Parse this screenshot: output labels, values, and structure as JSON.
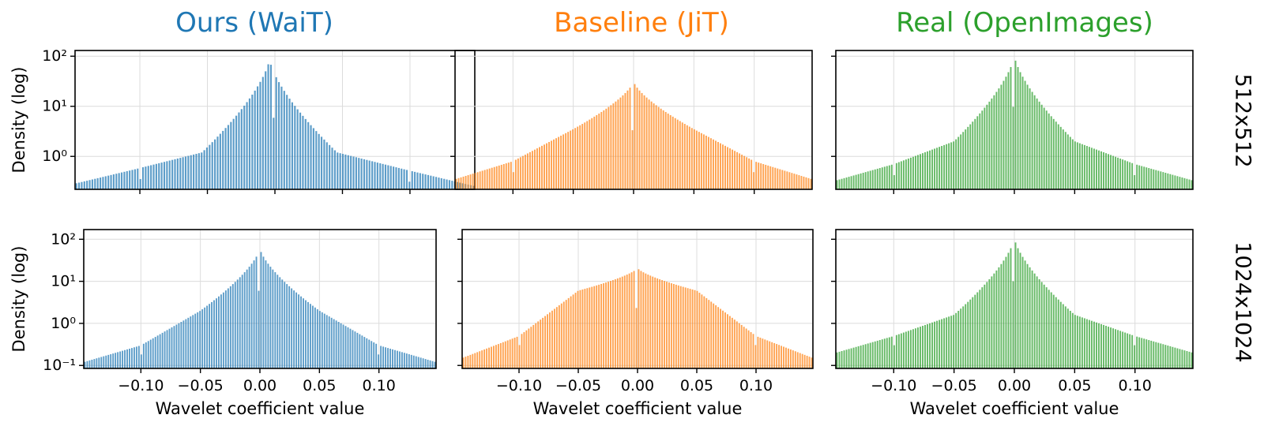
{
  "figure": {
    "columns": [
      {
        "title": "Ours (WaiT)",
        "color": "#1f77b4"
      },
      {
        "title": "Baseline (JiT)",
        "color": "#ff7f0e"
      },
      {
        "title": "Real (OpenImages)",
        "color": "#2ca02c"
      }
    ],
    "rows": [
      {
        "label": "512x512"
      },
      {
        "label": "1024x1024"
      }
    ]
  },
  "chart_data": [
    {
      "type": "bar",
      "row": "512x512",
      "column": "Ours (WaiT)",
      "color": "#1f77b4",
      "xlabel": "",
      "ylabel": "Density (log)",
      "yscale": "log",
      "xlim": [
        -0.148,
        0.148
      ],
      "ylim": [
        0.22,
        130
      ],
      "xticks": [
        -0.1,
        -0.05,
        0.0,
        0.05,
        0.1
      ],
      "xtick_labels": [
        "−0.10",
        "−0.05",
        "0.00",
        "0.05",
        "0.10"
      ],
      "yticks": [
        1,
        10,
        100
      ],
      "ytick_labels": [
        "10⁰",
        "10¹",
        "10²"
      ],
      "grid": true,
      "distribution": {
        "peak_x": -0.004,
        "peak_density": 90,
        "density_at_0.05": 1.2,
        "density_at_0.10": 0.55,
        "density_at_0.148": 0.27
      }
    },
    {
      "type": "bar",
      "row": "512x512",
      "column": "Baseline (JiT)",
      "color": "#ff7f0e",
      "xlabel": "",
      "ylabel": "",
      "yscale": "log",
      "xlim": [
        -0.148,
        0.148
      ],
      "ylim": [
        0.22,
        130
      ],
      "xticks": [
        -0.1,
        -0.05,
        0.0,
        0.05,
        0.1
      ],
      "xtick_labels": [
        "−0.10",
        "−0.05",
        "0.00",
        "0.05",
        "0.10"
      ],
      "yticks": [
        1,
        10,
        100
      ],
      "ytick_labels": [
        "",
        "",
        ""
      ],
      "grid": true,
      "distribution": {
        "peak_x": 0.0,
        "peak_density": 32,
        "density_at_0.05": 3.5,
        "density_at_0.10": 0.8,
        "density_at_0.148": 0.35
      }
    },
    {
      "type": "bar",
      "row": "512x512",
      "column": "Real (OpenImages)",
      "color": "#2ca02c",
      "xlabel": "",
      "ylabel": "",
      "yscale": "log",
      "xlim": [
        -0.148,
        0.148
      ],
      "ylim": [
        0.22,
        130
      ],
      "xticks": [
        -0.1,
        -0.05,
        0.0,
        0.05,
        0.1
      ],
      "xtick_labels": [
        "−0.10",
        "−0.05",
        "0.00",
        "0.05",
        "0.10"
      ],
      "yticks": [
        1,
        10,
        100
      ],
      "ytick_labels": [
        "",
        "",
        ""
      ],
      "grid": true,
      "distribution": {
        "peak_x": 0.0,
        "peak_density": 105,
        "density_at_0.05": 2.0,
        "density_at_0.10": 0.7,
        "density_at_0.148": 0.33
      }
    },
    {
      "type": "bar",
      "row": "1024x1024",
      "column": "Ours (WaiT)",
      "color": "#1f77b4",
      "xlabel": "Wavelet coefficient value",
      "ylabel": "Density (log)",
      "yscale": "log",
      "xlim": [
        -0.148,
        0.148
      ],
      "ylim": [
        0.085,
        170
      ],
      "xticks": [
        -0.1,
        -0.05,
        0.0,
        0.05,
        0.1
      ],
      "xtick_labels": [
        "−0.10",
        "−0.05",
        "0.00",
        "0.05",
        "0.10"
      ],
      "yticks": [
        0.1,
        1,
        10,
        100
      ],
      "ytick_labels": [
        "10⁻¹",
        "10⁰",
        "10¹",
        "10²"
      ],
      "grid": true,
      "distribution": {
        "peak_x": 0.0,
        "peak_density": 62,
        "density_at_0.05": 2.0,
        "density_at_0.10": 0.3,
        "density_at_0.148": 0.12
      }
    },
    {
      "type": "bar",
      "row": "1024x1024",
      "column": "Baseline (JiT)",
      "color": "#ff7f0e",
      "xlabel": "Wavelet coefficient value",
      "ylabel": "",
      "yscale": "log",
      "xlim": [
        -0.148,
        0.148
      ],
      "ylim": [
        0.085,
        170
      ],
      "xticks": [
        -0.1,
        -0.05,
        0.0,
        0.05,
        0.1
      ],
      "xtick_labels": [
        "−0.10",
        "−0.05",
        "0.00",
        "0.05",
        "0.10"
      ],
      "yticks": [
        0.1,
        1,
        10,
        100
      ],
      "ytick_labels": [
        "",
        "",
        "",
        ""
      ],
      "grid": true,
      "distribution": {
        "peak_x": 0.0,
        "peak_density": 21,
        "density_at_0.05": 6.0,
        "density_at_0.10": 0.5,
        "density_at_0.148": 0.15
      }
    },
    {
      "type": "bar",
      "row": "1024x1024",
      "column": "Real (OpenImages)",
      "color": "#2ca02c",
      "xlabel": "Wavelet coefficient value",
      "ylabel": "",
      "yscale": "log",
      "xlim": [
        -0.148,
        0.148
      ],
      "ylim": [
        0.085,
        170
      ],
      "xticks": [
        -0.1,
        -0.05,
        0.0,
        0.05,
        0.1
      ],
      "xtick_labels": [
        "−0.10",
        "−0.05",
        "0.00",
        "0.05",
        "0.10"
      ],
      "yticks": [
        0.1,
        1,
        10,
        100
      ],
      "ytick_labels": [
        "",
        "",
        "",
        ""
      ],
      "grid": true,
      "distribution": {
        "peak_x": 0.0,
        "peak_density": 110,
        "density_at_0.05": 1.6,
        "density_at_0.10": 0.5,
        "density_at_0.148": 0.2
      }
    }
  ]
}
